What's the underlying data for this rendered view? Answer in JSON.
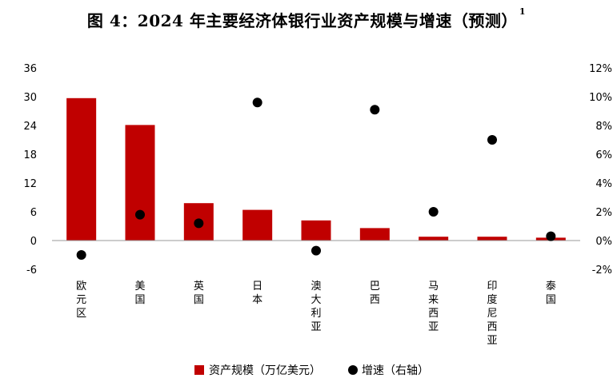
{
  "title": "图 4：2024 年主要经济体银行业资产规模与增速（预测）",
  "title_superscript": "1",
  "chart_data": {
    "type": "bar",
    "categories": [
      "欧元区",
      "美国",
      "英国",
      "日本",
      "澳大利亚",
      "巴西",
      "马来西亚",
      "印度尼西亚",
      "泰国"
    ],
    "series": [
      {
        "name": "资产规模（万亿美元）",
        "type": "bar",
        "axis": "left",
        "values": [
          29.7,
          24.1,
          7.8,
          6.4,
          4.2,
          2.6,
          0.8,
          0.8,
          0.6
        ]
      },
      {
        "name": "增速（右轴）",
        "type": "scatter",
        "axis": "right",
        "values": [
          -1.0,
          1.8,
          1.2,
          9.6,
          -0.7,
          9.1,
          2.0,
          7.0,
          0.3
        ]
      }
    ],
    "y_left": {
      "ticks": [
        "36",
        "30",
        "24",
        "18",
        "12",
        "6",
        "0",
        "-6"
      ],
      "ylim": [
        -6,
        36
      ]
    },
    "y_right": {
      "ticks": [
        "12%",
        "10%",
        "8%",
        "6%",
        "4%",
        "2%",
        "0%",
        "-2%"
      ],
      "ylim": [
        -2,
        12
      ]
    },
    "colors": {
      "bar": "#c00000",
      "dot": "#000000"
    },
    "grid": false,
    "legend_position": "bottom"
  }
}
